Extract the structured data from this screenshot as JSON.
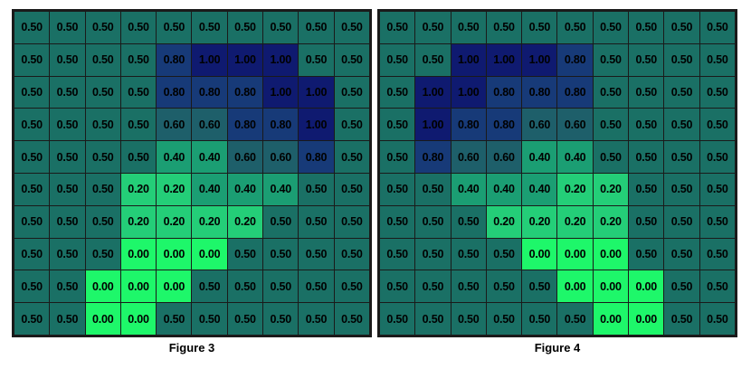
{
  "colors": {
    "0.00": "#1ef76a",
    "0.20": "#24ce78",
    "0.40": "#1b9e73",
    "0.50": "#1a7065",
    "0.60": "#1e5f6a",
    "0.80": "#173a78",
    "1.00": "#0f1a70"
  },
  "figures": [
    {
      "caption": "Figure 3",
      "grid": [
        [
          "0.50",
          "0.50",
          "0.50",
          "0.50",
          "0.50",
          "0.50",
          "0.50",
          "0.50",
          "0.50",
          "0.50"
        ],
        [
          "0.50",
          "0.50",
          "0.50",
          "0.50",
          "0.80",
          "1.00",
          "1.00",
          "1.00",
          "0.50",
          "0.50"
        ],
        [
          "0.50",
          "0.50",
          "0.50",
          "0.50",
          "0.80",
          "0.80",
          "0.80",
          "1.00",
          "1.00",
          "0.50"
        ],
        [
          "0.50",
          "0.50",
          "0.50",
          "0.50",
          "0.60",
          "0.60",
          "0.80",
          "0.80",
          "1.00",
          "0.50"
        ],
        [
          "0.50",
          "0.50",
          "0.50",
          "0.50",
          "0.40",
          "0.40",
          "0.60",
          "0.60",
          "0.80",
          "0.50"
        ],
        [
          "0.50",
          "0.50",
          "0.50",
          "0.20",
          "0.20",
          "0.40",
          "0.40",
          "0.40",
          "0.50",
          "0.50"
        ],
        [
          "0.50",
          "0.50",
          "0.50",
          "0.20",
          "0.20",
          "0.20",
          "0.20",
          "0.50",
          "0.50",
          "0.50"
        ],
        [
          "0.50",
          "0.50",
          "0.50",
          "0.00",
          "0.00",
          "0.00",
          "0.50",
          "0.50",
          "0.50",
          "0.50"
        ],
        [
          "0.50",
          "0.50",
          "0.00",
          "0.00",
          "0.00",
          "0.50",
          "0.50",
          "0.50",
          "0.50",
          "0.50"
        ],
        [
          "0.50",
          "0.50",
          "0.00",
          "0.00",
          "0.50",
          "0.50",
          "0.50",
          "0.50",
          "0.50",
          "0.50"
        ]
      ]
    },
    {
      "caption": "Figure 4",
      "grid": [
        [
          "0.50",
          "0.50",
          "0.50",
          "0.50",
          "0.50",
          "0.50",
          "0.50",
          "0.50",
          "0.50",
          "0.50"
        ],
        [
          "0.50",
          "0.50",
          "1.00",
          "1.00",
          "1.00",
          "0.80",
          "0.50",
          "0.50",
          "0.50",
          "0.50"
        ],
        [
          "0.50",
          "1.00",
          "1.00",
          "0.80",
          "0.80",
          "0.80",
          "0.50",
          "0.50",
          "0.50",
          "0.50"
        ],
        [
          "0.50",
          "1.00",
          "0.80",
          "0.80",
          "0.60",
          "0.60",
          "0.50",
          "0.50",
          "0.50",
          "0.50"
        ],
        [
          "0.50",
          "0.80",
          "0.60",
          "0.60",
          "0.40",
          "0.40",
          "0.50",
          "0.50",
          "0.50",
          "0.50"
        ],
        [
          "0.50",
          "0.50",
          "0.40",
          "0.40",
          "0.40",
          "0.20",
          "0.20",
          "0.50",
          "0.50",
          "0.50"
        ],
        [
          "0.50",
          "0.50",
          "0.50",
          "0.20",
          "0.20",
          "0.20",
          "0.20",
          "0.50",
          "0.50",
          "0.50"
        ],
        [
          "0.50",
          "0.50",
          "0.50",
          "0.50",
          "0.00",
          "0.00",
          "0.00",
          "0.50",
          "0.50",
          "0.50"
        ],
        [
          "0.50",
          "0.50",
          "0.50",
          "0.50",
          "0.50",
          "0.00",
          "0.00",
          "0.00",
          "0.50",
          "0.50"
        ],
        [
          "0.50",
          "0.50",
          "0.50",
          "0.50",
          "0.50",
          "0.50",
          "0.00",
          "0.00",
          "0.50",
          "0.50"
        ]
      ]
    }
  ]
}
